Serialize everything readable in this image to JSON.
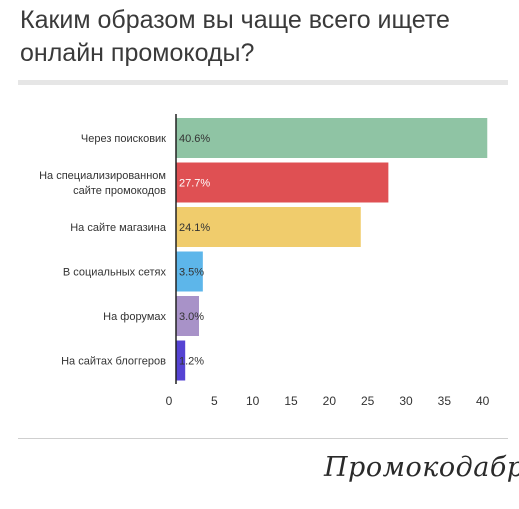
{
  "title": "Каким образом вы чаще всего ищете онлайн промокоды?",
  "brand": "Промокодабра",
  "chart_data": {
    "type": "bar",
    "orientation": "horizontal",
    "categories": [
      [
        "Через поисковик"
      ],
      [
        "На специализированном",
        "сайте промокодов"
      ],
      [
        "На сайте магазина"
      ],
      [
        "В социальных сетях"
      ],
      [
        "На форумах"
      ],
      [
        "На сайтах блоггеров"
      ]
    ],
    "values": [
      40.6,
      27.7,
      24.1,
      3.5,
      3.0,
      1.2
    ],
    "labels": [
      "40.6%",
      "27.7%",
      "24.1%",
      "3.5%",
      "3.0%",
      "1.2%"
    ],
    "colors": [
      "#8fc4a4",
      "#df5053",
      "#f0cc6c",
      "#5db6ea",
      "#a892c8",
      "#5543d3"
    ],
    "label_colors": [
      "#333333",
      "#ffffff",
      "#333333",
      "#333333",
      "#333333",
      "#333333"
    ],
    "xticks": [
      0,
      5,
      10,
      15,
      20,
      25,
      30,
      35,
      40
    ],
    "xlim": [
      0,
      42
    ],
    "grid": false
  }
}
